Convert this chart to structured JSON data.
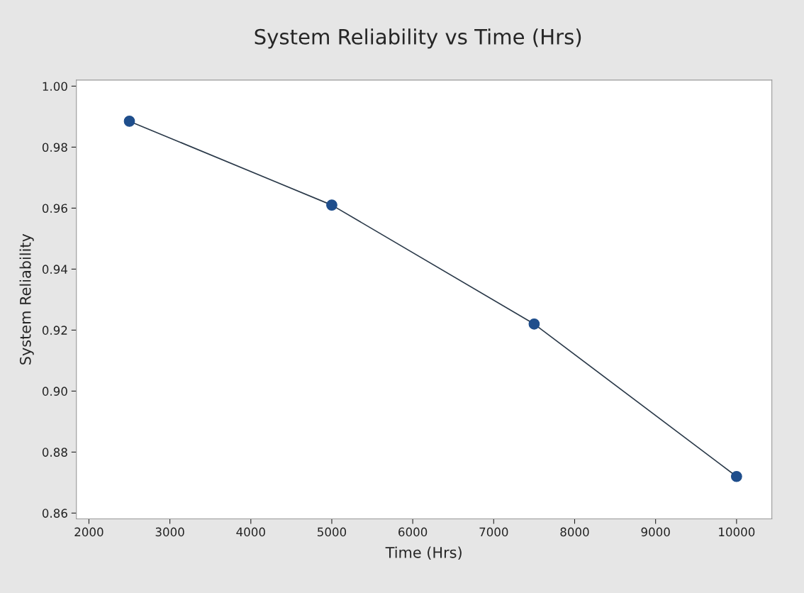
{
  "chart_data": {
    "type": "line",
    "title": "System Reliability vs Time (Hrs)",
    "xlabel": "Time (Hrs)",
    "ylabel": "System Reliability",
    "x": [
      2500,
      5000,
      7500,
      10000
    ],
    "series": [
      {
        "color": "#1f4e8c",
        "values": [
          0.9885,
          0.961,
          0.922,
          0.872
        ]
      }
    ],
    "marker": "circle",
    "line_style": "solid",
    "grid": false,
    "legend": false,
    "xlim": [
      1845,
      10436
    ],
    "xticks": [
      2000,
      3000,
      4000,
      5000,
      6000,
      7000,
      8000,
      9000,
      10000
    ],
    "ylim": [
      0.8581,
      1.002
    ],
    "yticks": [
      {
        "value": 0.86,
        "label": "0.86"
      },
      {
        "value": 0.88,
        "label": "0.88"
      },
      {
        "value": 0.9,
        "label": "0.90"
      },
      {
        "value": 0.92,
        "label": "0.92"
      },
      {
        "value": 0.94,
        "label": "0.94"
      },
      {
        "value": 0.96,
        "label": "0.96"
      },
      {
        "value": 0.98,
        "label": "0.98"
      },
      {
        "value": 1.0,
        "label": "1.00"
      }
    ]
  }
}
